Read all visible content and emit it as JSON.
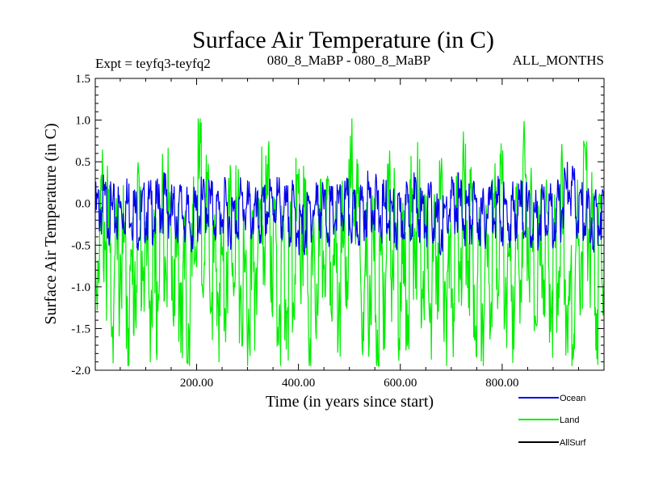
{
  "chart_data": {
    "type": "line",
    "title": "Surface Air Temperature (in C)",
    "experiment_label": "Expt = teyfq3-teyfq2",
    "period_label": "080_8_MaBP - 080_8_MaBP",
    "season_label": "ALL_MONTHS",
    "xlabel": "Time (in years since start)",
    "ylabel": "Surface Air Temperature (in C)",
    "xlim": [
      1,
      1000
    ],
    "ylim": [
      -2.0,
      1.5
    ],
    "xticks": [
      200,
      400,
      600,
      800
    ],
    "xtick_labels": [
      "200.00",
      "400.00",
      "600.00",
      "800.00"
    ],
    "yticks": [
      -2.0,
      -1.5,
      -1.0,
      -0.5,
      0.0,
      0.5,
      1.0,
      1.5
    ],
    "ytick_labels": [
      "-2.0",
      "-1.5",
      "-1.0",
      "-0.5",
      "0.0",
      "0.5",
      "1.0",
      "1.5"
    ],
    "legend_position": "bottom-right",
    "series": [
      {
        "name": "Ocean",
        "color": "#0000ee",
        "approx_mean": -0.1,
        "approx_min": -0.62,
        "approx_max": 0.52,
        "values": [
          -0.12,
          0.05,
          -0.21,
          -0.08,
          0.1,
          -0.3,
          -0.05,
          -0.15,
          0.18,
          -0.22,
          -0.02,
          -0.4,
          -0.1,
          0.12,
          -0.18,
          -0.06,
          -0.28,
          0.08,
          -0.12,
          -0.35,
          -0.04,
          0.15,
          -0.2,
          -0.1,
          -0.62,
          -0.08,
          0.05,
          -0.25,
          -0.14,
          0.02,
          -0.32,
          -0.09,
          0.2,
          -0.16,
          -0.05,
          -0.4,
          -0.12,
          0.07,
          -0.22,
          -0.11,
          -0.55,
          -0.03,
          0.1,
          -0.19,
          -0.07,
          -0.3,
          0.14,
          -0.1,
          -0.26,
          0.03,
          -0.13,
          -0.38,
          0.09,
          -0.2,
          -0.06,
          0.52,
          -0.17,
          -0.09,
          -0.31,
          0.04
        ]
      },
      {
        "name": "Land",
        "color": "#00ee00",
        "approx_mean": -0.7,
        "approx_min": -1.95,
        "approx_max": 1.02,
        "values": [
          -0.6,
          0.3,
          -1.3,
          -0.4,
          -1.8,
          0.1,
          -0.9,
          -1.5,
          0.35,
          -0.5,
          -1.1,
          -1.65,
          0.97,
          -0.3,
          -1.4,
          -0.7,
          0.4,
          -1.2,
          -1.7,
          -0.2,
          0.6,
          -1.0,
          -1.55,
          -0.45,
          0.25,
          -1.9,
          -0.8,
          0.5,
          -1.3,
          -0.35,
          1.02,
          -1.6,
          -0.6,
          -1.95,
          0.2,
          -0.9,
          -1.45,
          0.45,
          -0.55,
          -1.25,
          0.15,
          -1.75,
          -0.4,
          0.55,
          -1.1,
          -1.5,
          -0.25,
          0.35,
          -1.35,
          -0.75,
          0.98,
          -1.6,
          -0.5,
          -1.2,
          0.3,
          -1.85,
          -0.65,
          0.75,
          -1.4,
          -0.3
        ]
      },
      {
        "name": "AllSurf",
        "color": "#000000",
        "values": []
      }
    ]
  }
}
